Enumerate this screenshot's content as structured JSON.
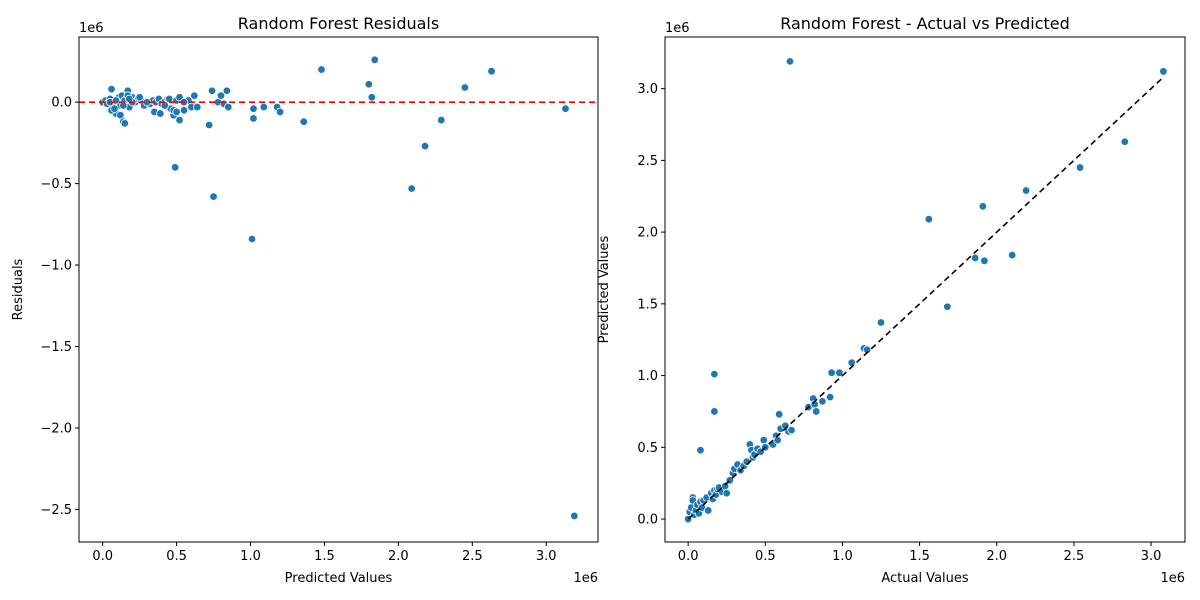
{
  "chart_data": [
    {
      "type": "scatter",
      "title": "Random Forest Residuals",
      "xlabel": "Predicted Values",
      "ylabel": "Residuals",
      "x_offset_label": "1e6",
      "y_offset_label": "1e6",
      "xlim": [
        -0.16,
        3.35
      ],
      "ylim": [
        -2.7,
        0.4
      ],
      "xticks": [
        0.0,
        0.5,
        1.0,
        1.5,
        2.0,
        2.5,
        3.0
      ],
      "xtick_labels": [
        "0.0",
        "0.5",
        "1.0",
        "1.5",
        "2.0",
        "2.5",
        "3.0"
      ],
      "yticks": [
        0.0,
        -0.5,
        -1.0,
        -1.5,
        -2.0,
        -2.5
      ],
      "ytick_labels": [
        "0.0",
        "−0.5",
        "−1.0",
        "−1.5",
        "−2.0",
        "−2.5"
      ],
      "reference_line": {
        "y": 0,
        "style": "dashed",
        "color": "#ff0000"
      },
      "points": {
        "x": [
          0.0,
          0.02,
          0.03,
          0.05,
          0.06,
          0.07,
          0.08,
          0.09,
          0.1,
          0.11,
          0.12,
          0.13,
          0.14,
          0.15,
          0.16,
          0.17,
          0.18,
          0.19,
          0.2,
          0.22,
          0.24,
          0.26,
          0.28,
          0.3,
          0.32,
          0.34,
          0.36,
          0.38,
          0.4,
          0.42,
          0.44,
          0.46,
          0.48,
          0.5,
          0.52,
          0.55,
          0.58,
          0.6,
          0.62,
          0.64,
          0.06,
          0.12,
          0.15,
          0.08,
          0.17,
          0.2,
          0.35,
          0.39,
          0.45,
          0.48,
          0.52,
          0.05,
          0.09,
          0.14,
          0.18,
          0.25,
          0.3,
          0.42,
          0.5,
          0.55,
          0.72,
          0.74,
          0.78,
          0.8,
          0.82,
          0.84,
          0.85,
          0.49,
          0.75,
          1.01,
          1.02,
          1.02,
          1.09,
          1.18,
          1.2,
          1.36,
          1.48,
          1.8,
          1.82,
          1.84,
          2.09,
          2.18,
          2.29,
          2.45,
          2.63,
          3.13,
          3.19
        ],
        "y": [
          0.0,
          0.01,
          -0.01,
          0.02,
          0.08,
          -0.02,
          0.0,
          -0.07,
          0.01,
          0.03,
          -0.08,
          0.04,
          -0.12,
          -0.13,
          0.02,
          0.07,
          -0.03,
          0.01,
          0.03,
          0.0,
          0.02,
          0.01,
          -0.02,
          0.0,
          -0.01,
          0.01,
          0.0,
          0.02,
          -0.01,
          0.0,
          0.02,
          -0.04,
          -0.08,
          0.01,
          -0.11,
          -0.05,
          0.01,
          -0.03,
          0.04,
          -0.03,
          -0.05,
          -0.02,
          0.01,
          -0.04,
          0.04,
          0.0,
          -0.06,
          -0.07,
          0.02,
          -0.05,
          0.03,
          0.0,
          0.01,
          -0.02,
          0.02,
          0.03,
          0.0,
          -0.02,
          -0.06,
          0.0,
          -0.14,
          0.07,
          0.0,
          0.04,
          -0.01,
          0.07,
          -0.03,
          -0.4,
          -0.58,
          -0.84,
          -0.04,
          -0.1,
          -0.03,
          -0.03,
          -0.06,
          -0.12,
          0.2,
          0.11,
          0.03,
          0.26,
          -0.53,
          -0.27,
          -0.11,
          0.09,
          0.19,
          -0.04,
          -2.54
        ]
      }
    },
    {
      "type": "scatter",
      "title": "Random Forest - Actual vs Predicted",
      "xlabel": "Actual Values",
      "ylabel": "Predicted Values",
      "x_offset_label": "1e6",
      "y_offset_label": "1e6",
      "xlim": [
        -0.15,
        3.22
      ],
      "ylim": [
        -0.16,
        3.36
      ],
      "xticks": [
        0.0,
        0.5,
        1.0,
        1.5,
        2.0,
        2.5,
        3.0
      ],
      "xtick_labels": [
        "0.0",
        "0.5",
        "1.0",
        "1.5",
        "2.0",
        "2.5",
        "3.0"
      ],
      "yticks": [
        0.0,
        0.5,
        1.0,
        1.5,
        2.0,
        2.5,
        3.0
      ],
      "ytick_labels": [
        "0.0",
        "0.5",
        "1.0",
        "1.5",
        "2.0",
        "2.5",
        "3.0"
      ],
      "reference_line": {
        "from": [
          0.0,
          0.0
        ],
        "to": [
          3.08,
          3.08
        ],
        "style": "dashed",
        "color": "#000000"
      },
      "points": {
        "x": [
          0.0,
          0.01,
          0.02,
          0.03,
          0.03,
          0.04,
          0.05,
          0.06,
          0.07,
          0.08,
          0.09,
          0.1,
          0.12,
          0.13,
          0.15,
          0.16,
          0.17,
          0.18,
          0.19,
          0.2,
          0.22,
          0.24,
          0.25,
          0.27,
          0.29,
          0.3,
          0.32,
          0.34,
          0.36,
          0.38,
          0.4,
          0.41,
          0.42,
          0.43,
          0.45,
          0.47,
          0.49,
          0.5,
          0.55,
          0.57,
          0.58,
          0.6,
          0.63,
          0.65,
          0.67,
          0.08,
          0.17,
          0.17,
          0.59,
          0.66,
          0.78,
          0.81,
          0.82,
          0.83,
          0.87,
          0.92,
          0.93,
          0.98,
          1.06,
          1.14,
          1.16,
          1.25,
          1.56,
          1.68,
          1.86,
          1.91,
          1.92,
          2.1,
          2.19,
          2.54,
          2.83,
          3.08
        ],
        "y": [
          0.0,
          0.05,
          0.08,
          0.15,
          0.13,
          0.03,
          0.06,
          0.1,
          0.04,
          0.12,
          0.08,
          0.13,
          0.15,
          0.06,
          0.18,
          0.14,
          0.2,
          0.17,
          0.21,
          0.22,
          0.19,
          0.23,
          0.18,
          0.27,
          0.32,
          0.35,
          0.38,
          0.34,
          0.37,
          0.4,
          0.52,
          0.48,
          0.43,
          0.45,
          0.49,
          0.47,
          0.55,
          0.5,
          0.52,
          0.58,
          0.55,
          0.63,
          0.65,
          0.61,
          0.62,
          0.48,
          1.01,
          0.75,
          0.73,
          3.19,
          0.78,
          0.84,
          0.8,
          0.75,
          0.82,
          0.85,
          1.02,
          1.02,
          1.09,
          1.19,
          1.18,
          1.37,
          2.09,
          1.48,
          1.82,
          2.18,
          1.8,
          1.84,
          2.29,
          2.45,
          2.63,
          3.12
        ]
      }
    }
  ]
}
